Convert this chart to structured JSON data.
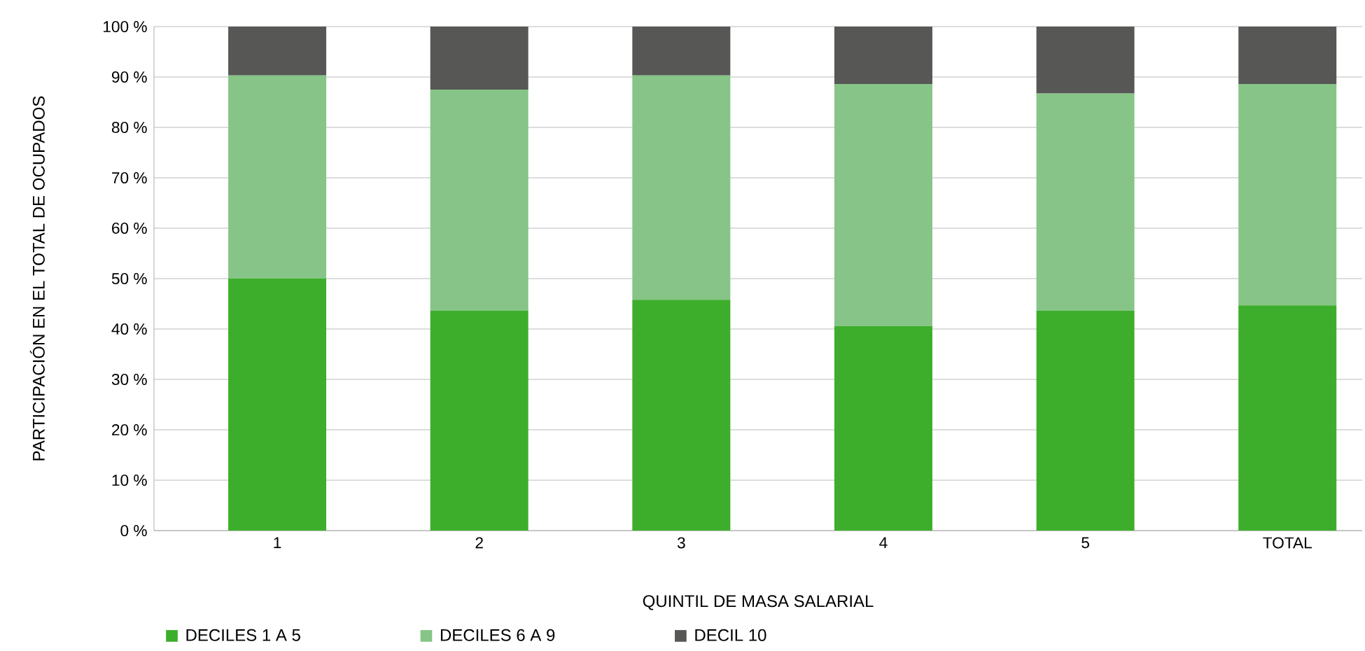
{
  "chart_data": {
    "type": "bar",
    "stacked": true,
    "categories": [
      "1",
      "2",
      "3",
      "4",
      "5",
      "TOTAL"
    ],
    "xlabel": "QUINTIL DE MASA SALARIAL",
    "ylabel": "PARTICIPACIÓN EN EL TOTAL DE OCUPADOS",
    "series": [
      {
        "name": "DECILES 1 A 5",
        "color": "#3dae2b",
        "values": [
          50,
          43.6,
          45.8,
          40.6,
          43.6,
          44.7
        ]
      },
      {
        "name": "DECILES 6 A 9",
        "color": "#86c587",
        "values": [
          40.3,
          43.9,
          44.5,
          48,
          43.1,
          43.9
        ]
      },
      {
        "name": "DECIL 10",
        "color": "#575756",
        "values": [
          9.7,
          12.5,
          9.7,
          11.4,
          13.3,
          11.4
        ]
      }
    ],
    "ylim": [
      0,
      100
    ],
    "yticks": [
      {
        "value": 0,
        "label": "0 %"
      },
      {
        "value": 10,
        "label": "10 %"
      },
      {
        "value": 20,
        "label": "20 %"
      },
      {
        "value": 30,
        "label": "30 %"
      },
      {
        "value": 40,
        "label": "40 %"
      },
      {
        "value": 50,
        "label": "50 %"
      },
      {
        "value": 60,
        "label": "60 %"
      },
      {
        "value": 70,
        "label": "70 %"
      },
      {
        "value": 80,
        "label": "80 %"
      },
      {
        "value": 90,
        "label": "90 %"
      },
      {
        "value": 100,
        "label": "100 %"
      }
    ],
    "grid": "y",
    "legend": "bottom"
  }
}
